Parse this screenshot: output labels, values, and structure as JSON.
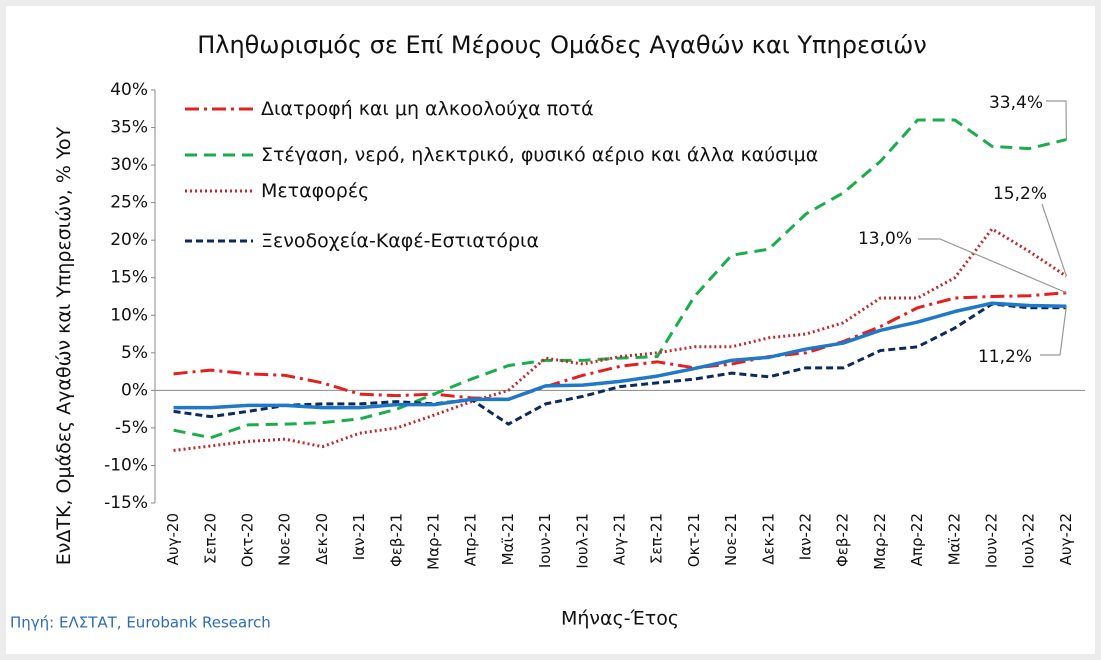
{
  "chart_data": {
    "type": "line",
    "title": "Πληθωρισμός σε Επί Μέρους Ομάδες Αγαθών και Υπηρεσιών",
    "x_label": "Μήνας-Έτος",
    "y_label": "ΕνΔΤΚ, Ομάδες Αγαθών και Υπηρεσιών, % YoY",
    "source": "Πηγή: ΕΛΣΤΑΤ, Eurobank Research",
    "categories": [
      "Αυγ-20",
      "Σεπ-20",
      "Οκτ-20",
      "Νοε-20",
      "Δεκ-20",
      "Ιαν-21",
      "Φεβ-21",
      "Μαρ-21",
      "Απρ-21",
      "Μαϊ-21",
      "Ιουν-21",
      "Ιουλ-21",
      "Αυγ-21",
      "Σεπ-21",
      "Οκτ-21",
      "Νοε-21",
      "Δεκ-21",
      "Ιαν-22",
      "Φεβ-22",
      "Μαρ-22",
      "Απρ-22",
      "Μαϊ-22",
      "Ιουν-22",
      "Ιουλ-22",
      "Αυγ-22"
    ],
    "ylim": [
      -15,
      40
    ],
    "yticks": [
      {
        "value": -15,
        "label": "-15%"
      },
      {
        "value": -10,
        "label": "-10%"
      },
      {
        "value": -5,
        "label": "-5%"
      },
      {
        "value": 0,
        "label": "0%"
      },
      {
        "value": 5,
        "label": "5%"
      },
      {
        "value": 10,
        "label": "10%"
      },
      {
        "value": 15,
        "label": "15%"
      },
      {
        "value": 20,
        "label": "20%"
      },
      {
        "value": 25,
        "label": "25%"
      },
      {
        "value": 30,
        "label": "30%"
      },
      {
        "value": 35,
        "label": "35%"
      },
      {
        "value": 40,
        "label": "40%"
      }
    ],
    "legend": "upper left",
    "series": [
      {
        "name": "Διατροφή και μη αλκοολούχα ποτά",
        "color": "#e3201e",
        "style": "dashdot",
        "values": [
          2.2,
          2.7,
          2.2,
          2.0,
          1.0,
          -0.5,
          -0.7,
          -0.5,
          -1.0,
          -1.2,
          0.5,
          2.0,
          3.2,
          3.8,
          3.0,
          3.5,
          4.5,
          5.0,
          6.5,
          8.5,
          11.0,
          12.3,
          12.5,
          12.6,
          13.0
        ]
      },
      {
        "name": "Στέγαση, νερό, ηλεκτρικό, φυσικό αέριο και άλλα καύσιμα",
        "color": "#1aad4b",
        "style": "dashed",
        "values": [
          -5.3,
          -6.3,
          -4.6,
          -4.5,
          -4.3,
          -3.8,
          -2.5,
          -0.5,
          1.5,
          3.3,
          4.0,
          4.0,
          4.3,
          4.5,
          12.5,
          18.0,
          18.8,
          23.5,
          26.3,
          30.5,
          36.0,
          36.0,
          32.5,
          32.2,
          33.4
        ]
      },
      {
        "name": "Μεταφορές",
        "color": "#c0282d",
        "style": "dotted",
        "values": [
          -8.0,
          -7.4,
          -6.8,
          -6.5,
          -7.5,
          -5.7,
          -5.0,
          -3.3,
          -1.5,
          0.0,
          4.3,
          3.5,
          4.5,
          5.0,
          5.8,
          5.8,
          7.0,
          7.5,
          9.0,
          12.3,
          12.3,
          15.0,
          21.5,
          18.5,
          15.2
        ]
      },
      {
        "name": "Ξενοδοχεία-Καφέ-Εστιατόρια",
        "color": "#0d2a5c",
        "style": "dashed",
        "values": [
          -2.8,
          -3.5,
          -2.8,
          -2.0,
          -1.8,
          -1.8,
          -1.5,
          -1.8,
          -1.2,
          -4.5,
          -1.8,
          -0.8,
          0.5,
          1.0,
          1.5,
          2.3,
          1.8,
          3.0,
          3.0,
          5.3,
          5.8,
          8.3,
          11.5,
          11.0,
          11.0
        ]
      },
      {
        "color": "#1f78c8",
        "style": "solid",
        "values": [
          -2.3,
          -2.3,
          -2.0,
          -2.0,
          -2.3,
          -2.3,
          -1.9,
          -1.9,
          -1.2,
          -1.2,
          0.6,
          0.7,
          1.2,
          1.9,
          2.9,
          4.0,
          4.4,
          5.5,
          6.3,
          8.0,
          9.1,
          10.5,
          11.6,
          11.3,
          11.2
        ]
      }
    ],
    "annotations": [
      "33,4%",
      "15,2%",
      "13,0%",
      "11,2%"
    ]
  }
}
